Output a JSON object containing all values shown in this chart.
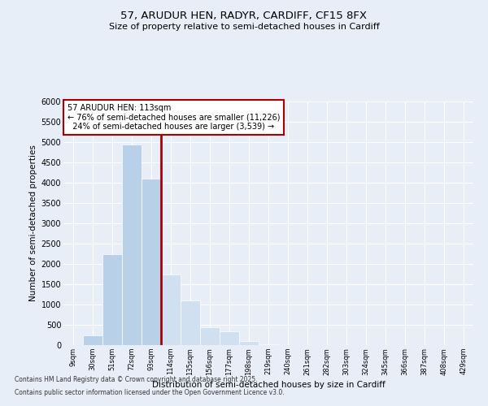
{
  "title1": "57, ARUDUR HEN, RADYR, CARDIFF, CF15 8FX",
  "title2": "Size of property relative to semi-detached houses in Cardiff",
  "xlabel": "Distribution of semi-detached houses by size in Cardiff",
  "ylabel": "Number of semi-detached properties",
  "categories": [
    "9sqm",
    "30sqm",
    "51sqm",
    "72sqm",
    "93sqm",
    "114sqm",
    "135sqm",
    "156sqm",
    "177sqm",
    "198sqm",
    "219sqm",
    "240sqm",
    "261sqm",
    "282sqm",
    "303sqm",
    "324sqm",
    "345sqm",
    "366sqm",
    "387sqm",
    "408sqm",
    "429sqm"
  ],
  "values": [
    0,
    250,
    2250,
    4950,
    4100,
    1750,
    1100,
    450,
    350,
    100,
    30,
    10,
    5,
    2,
    2,
    2,
    2,
    2,
    2,
    2,
    2
  ],
  "bar_color_left": "#b8d0e8",
  "bar_color_right": "#d0e0f0",
  "property_bar_index": 5,
  "property_label": "57 ARUDUR HEN: 113sqm",
  "pct_smaller": 76,
  "pct_larger": 24,
  "n_smaller": 11226,
  "n_larger": 3539,
  "annotation_box_color": "#aa0000",
  "footer1": "Contains HM Land Registry data © Crown copyright and database right 2025.",
  "footer2": "Contains public sector information licensed under the Open Government Licence v3.0.",
  "ylim": [
    0,
    6000
  ],
  "yticks": [
    0,
    500,
    1000,
    1500,
    2000,
    2500,
    3000,
    3500,
    4000,
    4500,
    5000,
    5500,
    6000
  ],
  "background_color": "#e8eef8"
}
